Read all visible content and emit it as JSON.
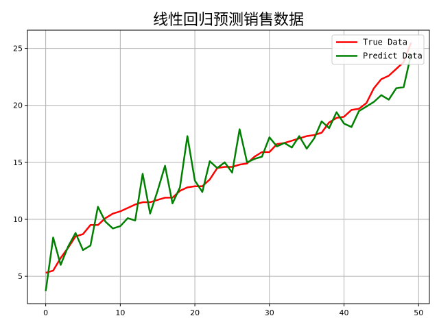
{
  "chart_data": {
    "type": "line",
    "title": "线性回归预测销售数据",
    "xlabel": "",
    "ylabel": "",
    "xlim": [
      -2.45,
      51.45
    ],
    "ylim": [
      2.6,
      26.6
    ],
    "xticks": [
      0,
      10,
      20,
      30,
      40,
      50
    ],
    "yticks": [
      5,
      10,
      15,
      20,
      25
    ],
    "grid": true,
    "legend_position": "upper right",
    "x": [
      0,
      1,
      2,
      3,
      4,
      5,
      6,
      7,
      8,
      9,
      10,
      11,
      12,
      13,
      14,
      15,
      16,
      17,
      18,
      19,
      20,
      21,
      22,
      23,
      24,
      25,
      26,
      27,
      28,
      29,
      30,
      31,
      32,
      33,
      34,
      35,
      36,
      37,
      38,
      39,
      40,
      41,
      42,
      43,
      44,
      45,
      46,
      47,
      48,
      49
    ],
    "series": [
      {
        "name": "True Data",
        "color": "#ff0000",
        "values": [
          5.3,
          5.5,
          6.6,
          7.5,
          8.5,
          8.7,
          9.5,
          9.5,
          10.1,
          10.5,
          10.7,
          11.0,
          11.3,
          11.5,
          11.5,
          11.7,
          11.9,
          11.9,
          12.5,
          12.8,
          12.9,
          12.9,
          13.5,
          14.5,
          14.6,
          14.6,
          14.8,
          14.9,
          15.5,
          15.9,
          15.9,
          16.6,
          16.7,
          16.9,
          17.1,
          17.3,
          17.4,
          17.6,
          18.5,
          18.9,
          19.0,
          19.6,
          19.7,
          20.2,
          21.5,
          22.3,
          22.6,
          23.2,
          23.8,
          25.5
        ]
      },
      {
        "name": "Predict Data",
        "color": "#008000",
        "values": [
          3.7,
          8.4,
          6.0,
          7.6,
          8.8,
          7.3,
          7.7,
          11.1,
          9.8,
          9.2,
          9.4,
          10.1,
          9.9,
          14.0,
          10.5,
          12.5,
          14.7,
          11.4,
          12.8,
          17.3,
          13.4,
          12.4,
          15.1,
          14.5,
          15.0,
          14.1,
          17.9,
          15.0,
          15.3,
          15.5,
          17.2,
          16.4,
          16.7,
          16.3,
          17.3,
          16.2,
          17.1,
          18.6,
          18.0,
          19.4,
          18.4,
          18.1,
          19.5,
          19.9,
          20.3,
          20.9,
          20.5,
          21.5,
          21.6,
          24.5
        ]
      }
    ]
  }
}
